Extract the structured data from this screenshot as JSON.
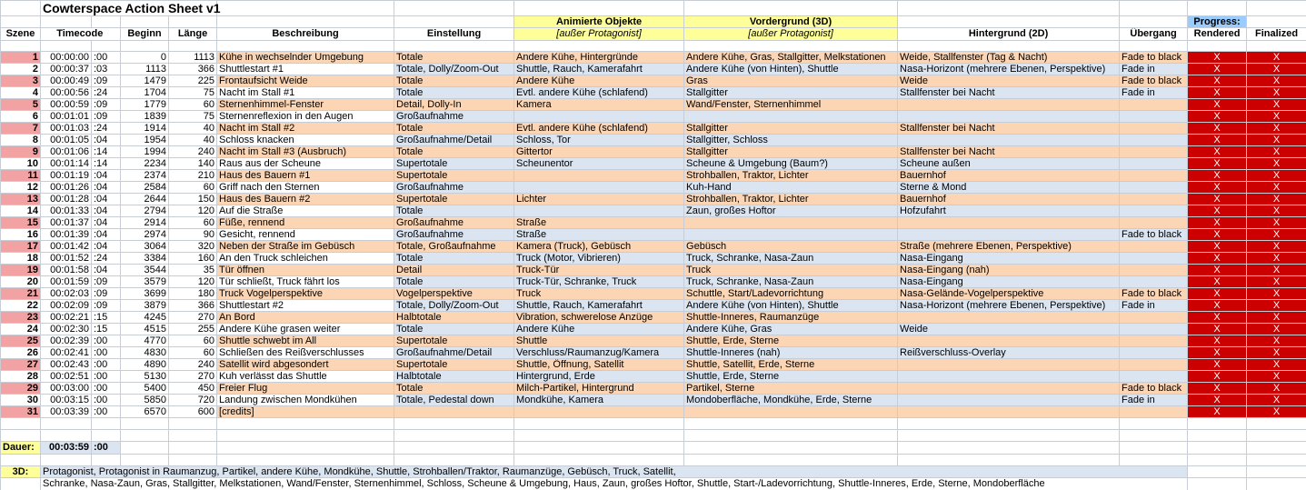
{
  "header": {
    "title": "Cowterspace Action Sheet v1",
    "groups": [
      null,
      null,
      null,
      null,
      null,
      null,
      null,
      "Animierte Objekte",
      "Vordergrund (3D)",
      null,
      null,
      "Progress:",
      null
    ],
    "columns": [
      "Szene",
      "Timeco",
      "de",
      "Beginn",
      "Länge",
      "Beschreibung",
      "Einstellung",
      "[außer Protagonist]",
      "[außer Protagonist]",
      "Hintergrund (2D)",
      "Übergang",
      "Rendered",
      "Finalized"
    ]
  },
  "table": {
    "rows": [
      [
        1,
        "00:00:00",
        ":00",
        0,
        1113,
        "Kühe in wechselnder Umgebung",
        "Totale",
        "Andere Kühe, Hintergründe",
        "Andere Kühe, Gras, Stallgitter, Melkstationen",
        "Weide, Stallfenster (Tag & Nacht)",
        "Fade to black",
        "X",
        "X"
      ],
      [
        2,
        "00:00:37",
        ":03",
        1113,
        366,
        "Shuttlestart #1",
        "Totale, Dolly/Zoom-Out",
        "Shuttle, Rauch, Kamerafahrt",
        "Andere Kühe (von Hinten), Shuttle",
        "Nasa-Horizont (mehrere Ebenen, Perspektive)",
        "Fade in",
        "X",
        "X"
      ],
      [
        3,
        "00:00:49",
        ":09",
        1479,
        225,
        "Frontaufsicht Weide",
        "Totale",
        "Andere Kühe",
        "Gras",
        "Weide",
        "Fade to black",
        "X",
        "X"
      ],
      [
        4,
        "00:00:56",
        ":24",
        1704,
        75,
        "Nacht im Stall #1",
        "Totale",
        "Evtl. andere Kühe (schlafend)",
        "Stallgitter",
        "Stallfenster bei Nacht",
        "Fade in",
        "X",
        "X"
      ],
      [
        5,
        "00:00:59",
        ":09",
        1779,
        60,
        "Sternenhimmel-Fenster",
        "Detail, Dolly-In",
        "Kamera",
        "Wand/Fenster, Sternenhimmel",
        null,
        null,
        "X",
        "X"
      ],
      [
        6,
        "00:01:01",
        ":09",
        1839,
        75,
        "Sternenreflexion in den Augen",
        "Großaufnahme",
        null,
        null,
        null,
        null,
        "X",
        "X"
      ],
      [
        7,
        "00:01:03",
        ":24",
        1914,
        40,
        "Nacht im Stall #2",
        "Totale",
        "Evtl. andere Kühe (schlafend)",
        "Stallgitter",
        "Stallfenster bei Nacht",
        null,
        "X",
        "X"
      ],
      [
        8,
        "00:01:05",
        ":04",
        1954,
        40,
        "Schloss knacken",
        "Großaufnahme/Detail",
        "Schloss, Tor",
        "Stallgitter, Schloss",
        null,
        null,
        "X",
        "X"
      ],
      [
        9,
        "00:01:06",
        ":14",
        1994,
        240,
        "Nacht im Stall #3 (Ausbruch)",
        "Totale",
        "Gittertor",
        "Stallgitter",
        "Stallfenster bei Nacht",
        null,
        "X",
        "X"
      ],
      [
        10,
        "00:01:14",
        ":14",
        2234,
        140,
        "Raus aus der Scheune",
        "Supertotale",
        "Scheunentor",
        "Scheune & Umgebung (Baum?)",
        "Scheune außen",
        null,
        "X",
        "X"
      ],
      [
        11,
        "00:01:19",
        ":04",
        2374,
        210,
        "Haus des Bauern #1",
        "Supertotale",
        null,
        "Strohballen, Traktor, Lichter",
        "Bauernhof",
        null,
        "X",
        "X"
      ],
      [
        12,
        "00:01:26",
        ":04",
        2584,
        60,
        "Griff nach den Sternen",
        "Großaufnahme",
        null,
        "Kuh-Hand",
        "Sterne & Mond",
        null,
        "X",
        "X"
      ],
      [
        13,
        "00:01:28",
        ":04",
        2644,
        150,
        "Haus des Bauern #2",
        "Supertotale",
        "Lichter",
        "Strohballen, Traktor, Lichter",
        "Bauernhof",
        null,
        "X",
        "X"
      ],
      [
        14,
        "00:01:33",
        ":04",
        2794,
        120,
        "Auf die Straße",
        "Totale",
        null,
        "Zaun, großes Hoftor",
        "Hofzufahrt",
        null,
        "X",
        "X"
      ],
      [
        15,
        "00:01:37",
        ":04",
        2914,
        60,
        "Füße, rennend",
        "Großaufnahme",
        "Straße",
        null,
        null,
        null,
        "X",
        "X"
      ],
      [
        16,
        "00:01:39",
        ":04",
        2974,
        90,
        "Gesicht, rennend",
        "Großaufnahme",
        "Straße",
        null,
        null,
        "Fade to black",
        "X",
        "X"
      ],
      [
        17,
        "00:01:42",
        ":04",
        3064,
        320,
        "Neben der Straße im Gebüsch",
        "Totale, Großaufnahme",
        "Kamera (Truck), Gebüsch",
        "Gebüsch",
        "Straße (mehrere Ebenen, Perspektive)",
        null,
        "X",
        "X"
      ],
      [
        18,
        "00:01:52",
        ":24",
        3384,
        160,
        "An den Truck schleichen",
        "Totale",
        "Truck (Motor, Vibrieren)",
        "Truck, Schranke, Nasa-Zaun",
        "Nasa-Eingang",
        null,
        "X",
        "X"
      ],
      [
        19,
        "00:01:58",
        ":04",
        3544,
        35,
        "Tür öffnen",
        "Detail",
        "Truck-Tür",
        "Truck",
        "Nasa-Eingang (nah)",
        null,
        "X",
        "X"
      ],
      [
        20,
        "00:01:59",
        ":09",
        3579,
        120,
        "Tür schließt, Truck fährt los",
        "Totale",
        "Truck-Tür, Schranke, Truck",
        "Truck, Schranke, Nasa-Zaun",
        "Nasa-Eingang",
        null,
        "X",
        "X"
      ],
      [
        21,
        "00:02:03",
        ":09",
        3699,
        180,
        "Truck Vogelperspektive",
        "Vogelperspektive",
        "Truck",
        "Schuttle, Start/Ladevorrichtung",
        "Nasa-Gelände-Vogelperspektive",
        "Fade to black",
        "X",
        "X"
      ],
      [
        22,
        "00:02:09",
        ":09",
        3879,
        366,
        "Shuttlestart #2",
        "Totale, Dolly/Zoom-Out",
        "Shuttle, Rauch, Kamerafahrt",
        "Andere Kühe (von Hinten), Shuttle",
        "Nasa-Horizont (mehrere Ebenen, Perspektive)",
        "Fade in",
        "X",
        "X"
      ],
      [
        23,
        "00:02:21",
        ":15",
        4245,
        270,
        "An Bord",
        "Halbtotale",
        "Vibration, schwerelose Anzüge",
        "Shuttle-Inneres, Raumanzüge",
        null,
        null,
        "X",
        "X"
      ],
      [
        24,
        "00:02:30",
        ":15",
        4515,
        255,
        "Andere Kühe grasen weiter",
        "Totale",
        "Andere Kühe",
        "Andere Kühe, Gras",
        "Weide",
        null,
        "X",
        "X"
      ],
      [
        25,
        "00:02:39",
        ":00",
        4770,
        60,
        "Shuttle schwebt im All",
        "Supertotale",
        "Shuttle",
        "Shuttle, Erde, Sterne",
        null,
        null,
        "X",
        "X"
      ],
      [
        26,
        "00:02:41",
        ":00",
        4830,
        60,
        "Schließen des Reißverschlusses",
        "Großaufnahme/Detail",
        "Verschluss/Raumanzug/Kamera",
        "Shuttle-Inneres (nah)",
        "Reißverschluss-Overlay",
        null,
        "X",
        "X"
      ],
      [
        27,
        "00:02:43",
        ":00",
        4890,
        240,
        "Satellit wird abgesondert",
        "Supertotale",
        "Shuttle, Öffnung, Satellit",
        "Shuttle, Satellit, Erde, Sterne",
        null,
        null,
        "X",
        "X"
      ],
      [
        28,
        "00:02:51",
        ":00",
        5130,
        270,
        "Kuh verlässt das Shuttle",
        "Halbtotale",
        "Hintergrund, Erde",
        "Shuttle, Erde, Sterne",
        null,
        null,
        "X",
        "X"
      ],
      [
        29,
        "00:03:00",
        ":00",
        5400,
        450,
        "Freier Flug",
        "Totale",
        "Milch-Partikel, Hintergrund",
        "Partikel, Sterne",
        null,
        "Fade to black",
        "X",
        "X"
      ],
      [
        30,
        "00:03:15",
        ":00",
        5850,
        720,
        "Landung zwischen Mondkühen",
        "Totale, Pedestal down",
        "Mondkühe, Kamera",
        "Mondoberfläche, Mondkühe, Erde, Sterne",
        null,
        "Fade in",
        "X",
        "X"
      ],
      [
        31,
        "00:03:39",
        ":00",
        6570,
        600,
        "[credits]",
        null,
        null,
        null,
        null,
        null,
        "X",
        "X"
      ]
    ]
  },
  "footer": {
    "dauer": {
      "label": "Dauer:",
      "timecode": "00:03:59",
      "frames": ":00"
    },
    "objects": {
      "label": "3D:",
      "lines": [
        "Protagonist, Protagonist in Raumanzug, Partikel, andere Kühe, Mondkühe, Shuttle, Strohballen/Traktor, Raumanzüge, Gebüsch, Truck, Satellit,",
        "Schranke, Nasa-Zaun, Gras, Stallgitter, Melkstationen, Wand/Fenster, Sternenhimmel, Schloss, Scheune & Umgebung, Haus, Zaun, großes Hoftor, Shuttle, Start-/Ladevorrichtung, Shuttle-Inneres, Erde, Sterne, Mondoberfläche"
      ]
    }
  }
}
